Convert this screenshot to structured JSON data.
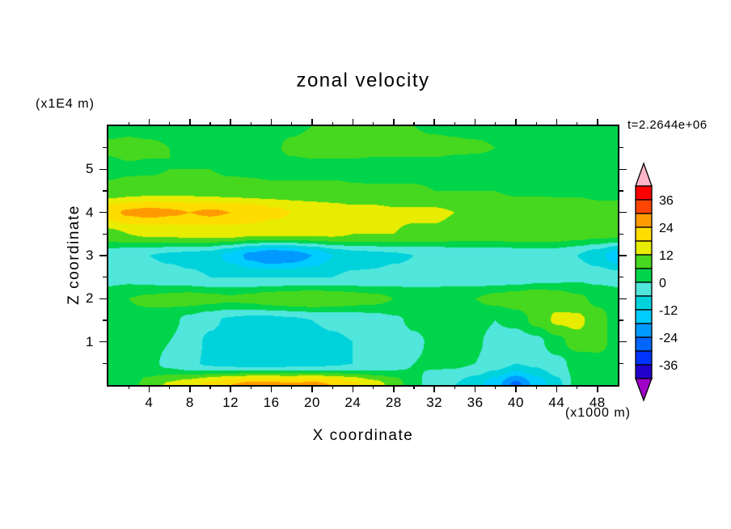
{
  "title": "zonal velocity",
  "time_label": "t=2.2644e+06",
  "axes": {
    "x_label": "X coordinate",
    "x_unit": "(x1000 m)",
    "y_label": "Z coordinate",
    "y_unit": "(x1E4 m)",
    "x_ticks": [
      4,
      8,
      12,
      16,
      20,
      24,
      28,
      32,
      36,
      40,
      44,
      48
    ],
    "x_minor_step": 2,
    "y_ticks": [
      1,
      2,
      3,
      4,
      5
    ],
    "y_minor_step": 0.5
  },
  "colorbar": {
    "labels": [
      36,
      24,
      12,
      0,
      -12,
      -24,
      -36
    ]
  },
  "chart_data": {
    "type": "contour",
    "title": "zonal velocity",
    "xlabel": "X coordinate (x1000 m)",
    "ylabel": "Z coordinate (x1E4 m)",
    "time": "t=2.2644e+06",
    "x_range": [
      0,
      50
    ],
    "z_range": [
      0,
      6
    ],
    "levels": [
      -42,
      -36,
      -30,
      -24,
      -18,
      -12,
      -6,
      0,
      6,
      12,
      18,
      24,
      30,
      36,
      42
    ],
    "colors": [
      "#a000c8",
      "#2200cc",
      "#0033ff",
      "#0066ff",
      "#0099ff",
      "#00ccff",
      "#00d2dc",
      "#50e6dc",
      "#00d44b",
      "#46d81e",
      "#e8ec00",
      "#ffdc00",
      "#ff9b00",
      "#ff4600",
      "#ff0000",
      "#ffb4c8"
    ],
    "grid_x": [
      0,
      2,
      4,
      6,
      8,
      10,
      12,
      14,
      16,
      18,
      20,
      22,
      24,
      26,
      28,
      30,
      32,
      34,
      36,
      38,
      40,
      42,
      44,
      46,
      48,
      50
    ],
    "grid_z": [
      0,
      0.5,
      1,
      1.5,
      2,
      2.5,
      3,
      3.5,
      4,
      4.5,
      5,
      5.5,
      6
    ],
    "values": [
      [
        2,
        4,
        8,
        13,
        16,
        20,
        24,
        26,
        26,
        25,
        26,
        24,
        20,
        15,
        10,
        2,
        -4,
        -6,
        -10,
        -16,
        -26,
        -16,
        -8,
        2,
        4,
        3
      ],
      [
        2,
        3,
        2,
        -2,
        -5,
        -7,
        -8,
        -9,
        -9,
        -8,
        -8,
        -7,
        -6,
        -5,
        -3,
        0,
        1,
        1,
        0,
        -3,
        -6,
        -5,
        -2,
        2,
        4,
        3
      ],
      [
        3,
        4,
        3,
        0,
        -4,
        -7,
        -9,
        -10,
        -10,
        -9,
        -8,
        -7,
        -6,
        -5,
        -3,
        -1,
        1,
        2,
        1,
        -2,
        -4,
        -2,
        4,
        9,
        8,
        4
      ],
      [
        4,
        5,
        4,
        2,
        -2,
        -5,
        -7,
        -8,
        -8,
        -7,
        -6,
        -5,
        -4,
        -3,
        -1,
        1,
        2,
        3,
        2,
        0,
        2,
        8,
        13,
        14,
        8,
        4
      ],
      [
        5,
        6,
        7,
        8,
        9,
        8,
        7,
        8,
        10,
        11,
        12,
        11,
        9,
        8,
        6,
        5,
        4,
        5,
        6,
        8,
        10,
        12,
        10,
        7,
        5,
        4
      ],
      [
        -3,
        -2,
        -3,
        -4,
        -5,
        -6,
        -6,
        -6,
        -6,
        -6,
        -6,
        -6,
        -5,
        -5,
        -4,
        -4,
        -3,
        -3,
        -4,
        -4,
        -4,
        -3,
        -2,
        -1,
        -2,
        -3
      ],
      [
        -4,
        -5,
        -6,
        -7,
        -8,
        -9,
        -14,
        -20,
        -24,
        -22,
        -18,
        -12,
        -9,
        -8,
        -7,
        -6,
        -6,
        -5,
        -5,
        -5,
        -4,
        -4,
        -4,
        -6,
        -10,
        -16
      ],
      [
        10,
        12,
        13,
        13,
        14,
        14,
        14,
        13,
        13,
        13,
        13,
        13,
        12,
        12,
        12,
        11,
        11,
        10,
        10,
        10,
        10,
        10,
        10,
        9,
        8,
        8
      ],
      [
        22,
        25,
        26,
        25,
        24,
        25,
        24,
        23,
        20,
        18,
        16,
        15,
        14,
        14,
        13,
        13,
        13,
        12,
        12,
        12,
        11,
        11,
        10,
        10,
        9,
        9
      ],
      [
        8,
        9,
        10,
        10,
        10,
        9,
        9,
        8,
        8,
        8,
        8,
        8,
        7,
        7,
        7,
        7,
        6,
        6,
        6,
        6,
        5,
        5,
        5,
        5,
        4,
        4
      ],
      [
        4,
        5,
        5,
        6,
        6,
        6,
        5,
        5,
        4,
        4,
        4,
        4,
        4,
        3,
        3,
        3,
        3,
        3,
        2,
        2,
        2,
        2,
        2,
        3,
        3,
        3
      ],
      [
        7,
        8,
        7,
        6,
        4,
        3,
        3,
        4,
        5,
        7,
        8,
        8,
        8,
        8,
        8,
        8,
        8,
        7,
        7,
        6,
        5,
        4,
        3,
        3,
        3,
        3
      ],
      [
        4,
        4,
        4,
        4,
        4,
        3,
        3,
        3,
        4,
        5,
        6,
        6,
        6,
        6,
        6,
        6,
        5,
        5,
        4,
        4,
        4,
        3,
        3,
        3,
        3,
        3
      ]
    ]
  }
}
